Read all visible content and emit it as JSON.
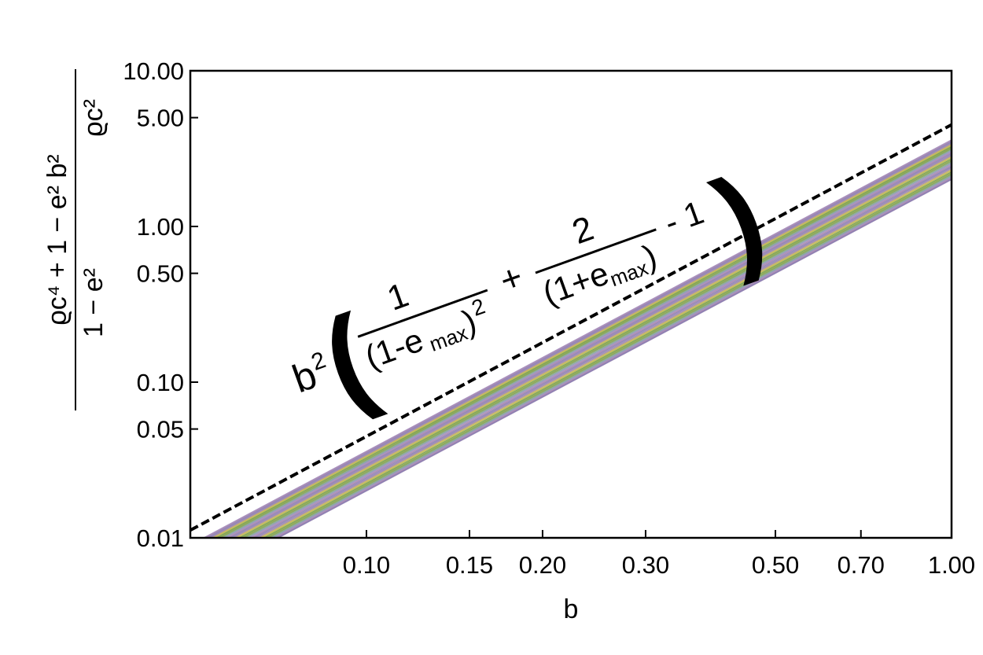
{
  "chart_data": {
    "type": "line",
    "xscale": "log",
    "yscale": "log",
    "xlabel": "b",
    "ylabel": {
      "top_numerator": "ϱc⁴ + 1 − e² b²",
      "top_denominator": "1 − e²",
      "bottom_denominator": "ϱc²"
    },
    "xlim": [
      0.05,
      1.0
    ],
    "ylim": [
      0.01,
      10.0
    ],
    "x_ticks": [
      "0.10",
      "0.15",
      "0.20",
      "0.30",
      "0.50",
      "0.70",
      "1.00"
    ],
    "x_tick_values": [
      0.1,
      0.15,
      0.2,
      0.3,
      0.5,
      0.7,
      1.0
    ],
    "y_ticks": [
      "0.01",
      "0.05",
      "0.10",
      "0.50",
      "1.00",
      "5.00",
      "10.00"
    ],
    "y_tick_values": [
      0.01,
      0.05,
      0.1,
      0.5,
      1.0,
      5.0,
      10.0
    ],
    "grid": false,
    "bound_curve": {
      "style": "dashed",
      "color": "#000000",
      "x": [
        0.05,
        1.0
      ],
      "y": [
        0.0112,
        4.5
      ]
    },
    "curve_family": {
      "description": "many thin curves of slope 2 on log-log axes",
      "count": 40,
      "x": [
        0.05,
        1.0
      ],
      "coefficient_range": [
        2.0,
        3.6
      ],
      "colors": [
        "#8f79a8",
        "#7c74b3",
        "#a07aa5",
        "#9c83b6",
        "#7e8fb0",
        "#7fa07c",
        "#6e9a4a",
        "#8a9a3a",
        "#5f9e40",
        "#b6a84a",
        "#c2b640",
        "#9b7f9f"
      ]
    },
    "annotation": {
      "prefix": "b",
      "prefix_exp": "2",
      "frac1_num": "1",
      "frac1_den_open": "(1-e",
      "frac1_den_sub": "max",
      "frac1_den_close": ")",
      "frac1_den_exp": "2",
      "plus": "+",
      "frac2_num": "2",
      "frac2_den_open": "(1+e",
      "frac2_den_sub": "max",
      "frac2_den_close": ")",
      "minus_one": "- 1"
    }
  }
}
